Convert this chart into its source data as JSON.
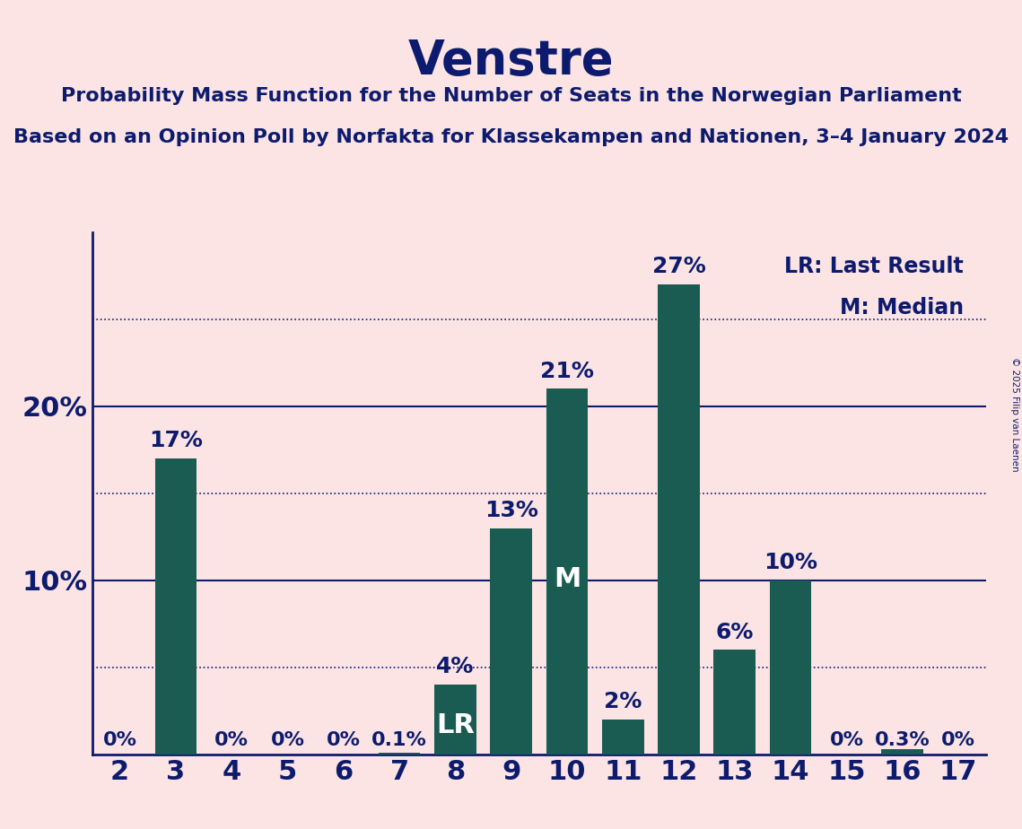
{
  "title": "Venstre",
  "subtitle1": "Probability Mass Function for the Number of Seats in the Norwegian Parliament",
  "subtitle2": "Based on an Opinion Poll by Norfakta for Klassekampen and Nationen, 3–4 January 2024",
  "copyright": "© 2025 Filip van Laenen",
  "seats": [
    2,
    3,
    4,
    5,
    6,
    7,
    8,
    9,
    10,
    11,
    12,
    13,
    14,
    15,
    16,
    17
  ],
  "values": [
    0.0,
    17.0,
    0.0,
    0.0,
    0.0,
    0.1,
    4.0,
    13.0,
    21.0,
    2.0,
    27.0,
    6.0,
    10.0,
    0.0,
    0.3,
    0.0
  ],
  "bar_color": "#1a5c52",
  "background_color": "#fce4e4",
  "text_color": "#0d1b6e",
  "lr_seat": 8,
  "median_seat": 10,
  "ylim": [
    0,
    30
  ],
  "yticks": [
    0,
    10,
    20,
    30
  ],
  "dotted_lines": [
    5,
    15,
    25
  ],
  "solid_lines": [
    10,
    20
  ]
}
